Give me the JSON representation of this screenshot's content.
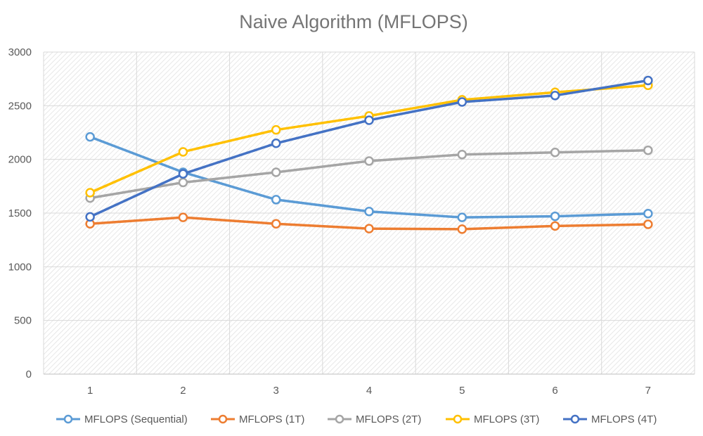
{
  "chart_data": {
    "type": "line",
    "title": "Naive Algorithm (MFLOPS)",
    "xlabel": "",
    "ylabel": "",
    "categories": [
      "1",
      "2",
      "3",
      "4",
      "5",
      "6",
      "7"
    ],
    "ylim": [
      0,
      3000
    ],
    "yticks": [
      0,
      500,
      1000,
      1500,
      2000,
      2500,
      3000
    ],
    "grid": true,
    "legend_position": "bottom",
    "series": [
      {
        "name": "MFLOPS (Sequential)",
        "color": "#5B9BD5",
        "values": [
          2210,
          1880,
          1625,
          1515,
          1460,
          1470,
          1495
        ]
      },
      {
        "name": "MFLOPS (1T)",
        "color": "#ED7D31",
        "values": [
          1400,
          1460,
          1400,
          1355,
          1350,
          1380,
          1395
        ]
      },
      {
        "name": "MFLOPS (2T)",
        "color": "#A5A5A5",
        "values": [
          1640,
          1785,
          1880,
          1985,
          2045,
          2065,
          2085
        ]
      },
      {
        "name": "MFLOPS (3T)",
        "color": "#FFC000",
        "values": [
          1690,
          2070,
          2275,
          2405,
          2555,
          2625,
          2690
        ]
      },
      {
        "name": "MFLOPS (4T)",
        "color": "#4472C4",
        "values": [
          1465,
          1865,
          2150,
          2365,
          2535,
          2595,
          2735
        ]
      }
    ]
  }
}
